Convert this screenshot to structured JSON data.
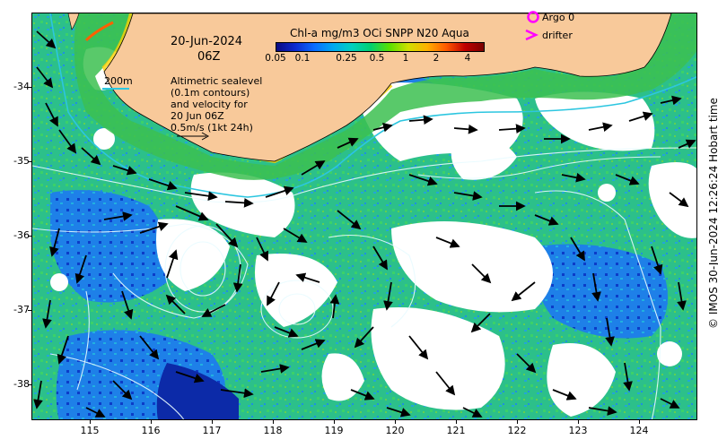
{
  "map": {
    "date_label": "20-Jun-2024",
    "time_label": "06Z",
    "colorbar_title": "Chl-a mg/m3 OCi SNPP N20 Aqua",
    "colorbar_ticks": [
      "0.05",
      "0.1",
      "0.25",
      "0.5",
      "1",
      "2",
      "4"
    ],
    "contour_label": "200m",
    "annotation_lines": [
      "Altimetric sealevel",
      "(0.1m contours)",
      "and velocity for",
      "20 Jun 06Z",
      "0.5m/s (1kt 24h)"
    ],
    "legend": {
      "argo_label": "Argo 0",
      "drifter_label": "drifter",
      "argo_color": "#ff00ff",
      "drifter_color": "#ff00ff"
    },
    "x_ticks": [
      "115",
      "116",
      "117",
      "118",
      "119",
      "120",
      "121",
      "122",
      "123",
      "124"
    ],
    "y_ticks": [
      "-34",
      "-35",
      "-36",
      "-37",
      "-38"
    ],
    "credit": "© IMOS 30-Jun-2024 12:26:24 Hobart time",
    "colors": {
      "land": "#f8c99a",
      "contour": "#2cc6e0",
      "arrow": "#000000",
      "ocean_mid": "#2cc08a",
      "ocean_low": "#1e6fe0",
      "cloud": "#ffffff"
    },
    "x_range": [
      114.1,
      125.0
    ],
    "y_range": [
      -38.5,
      -33.0
    ]
  }
}
